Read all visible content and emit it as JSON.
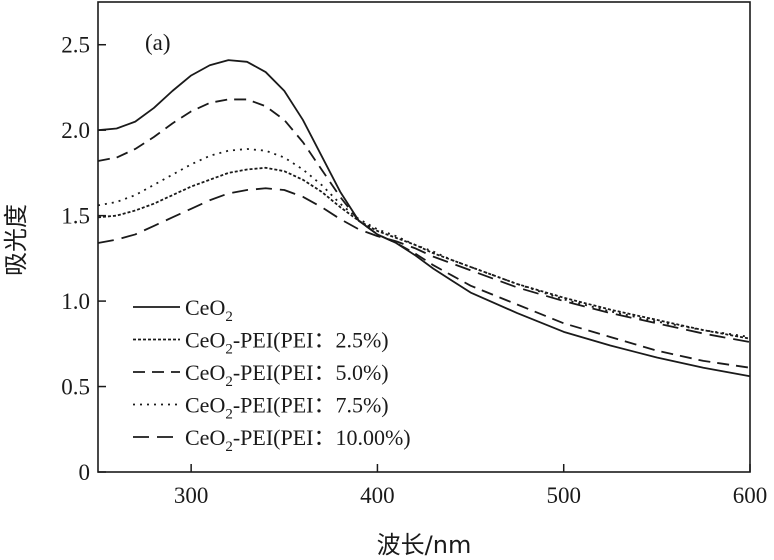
{
  "chart_data": {
    "type": "line",
    "panel_label": "(a)",
    "xlabel": "波长/nm",
    "ylabel": "吸光度",
    "xlim": [
      250,
      600
    ],
    "ylim": [
      0,
      2.75
    ],
    "x_ticks": [
      300,
      400,
      500,
      600
    ],
    "x_tick_labels": [
      "300",
      "400",
      "500",
      "600"
    ],
    "y_ticks": [
      0,
      0.5,
      1.0,
      1.5,
      2.0,
      2.5
    ],
    "y_tick_labels": [
      "0",
      "0.5",
      "1.0",
      "1.5",
      "2.0",
      "2.5"
    ],
    "grid": false,
    "legend_position": "bottom-left",
    "series": [
      {
        "name": "CeO2",
        "label_main": "CeO",
        "label_sub": "2",
        "label_rest": "",
        "dash": "solid",
        "x": [
          250,
          260,
          270,
          280,
          290,
          300,
          310,
          320,
          330,
          340,
          350,
          360,
          370,
          380,
          390,
          400,
          410,
          420,
          430,
          440,
          450,
          475,
          500,
          525,
          550,
          575,
          600
        ],
        "y": [
          2.0,
          2.01,
          2.05,
          2.13,
          2.23,
          2.32,
          2.38,
          2.41,
          2.4,
          2.34,
          2.23,
          2.06,
          1.85,
          1.64,
          1.47,
          1.39,
          1.34,
          1.27,
          1.19,
          1.12,
          1.05,
          0.93,
          0.82,
          0.74,
          0.67,
          0.61,
          0.56
        ]
      },
      {
        "name": "CeO2-PEI(PEI：2.5%)",
        "label_main": "CeO",
        "label_sub": "2",
        "label_rest": "-PEI(PEI：2.5%)",
        "dash": "dense-dot",
        "x": [
          250,
          260,
          270,
          280,
          290,
          300,
          310,
          320,
          330,
          340,
          350,
          360,
          370,
          380,
          390,
          400,
          410,
          420,
          430,
          440,
          450,
          475,
          500,
          525,
          550,
          575,
          600
        ],
        "y": [
          1.49,
          1.5,
          1.53,
          1.57,
          1.62,
          1.67,
          1.71,
          1.75,
          1.77,
          1.78,
          1.76,
          1.71,
          1.64,
          1.55,
          1.47,
          1.41,
          1.37,
          1.33,
          1.28,
          1.24,
          1.2,
          1.1,
          1.02,
          0.95,
          0.89,
          0.83,
          0.78
        ]
      },
      {
        "name": "CeO2-PEI(PEI：5.0%)",
        "label_main": "CeO",
        "label_sub": "2",
        "label_rest": "-PEI(PEI：5.0%)",
        "dash": "dash",
        "x": [
          250,
          260,
          270,
          280,
          290,
          300,
          310,
          320,
          330,
          340,
          350,
          360,
          370,
          380,
          390,
          400,
          410,
          420,
          430,
          440,
          450,
          475,
          500,
          525,
          550,
          575,
          600
        ],
        "y": [
          1.82,
          1.84,
          1.89,
          1.96,
          2.04,
          2.11,
          2.16,
          2.18,
          2.18,
          2.14,
          2.06,
          1.93,
          1.77,
          1.61,
          1.47,
          1.39,
          1.34,
          1.28,
          1.21,
          1.15,
          1.09,
          0.98,
          0.87,
          0.79,
          0.71,
          0.65,
          0.61
        ]
      },
      {
        "name": "CeO2-PEI(PEI：7.5%)",
        "label_main": "CeO",
        "label_sub": "2",
        "label_rest": "-PEI(PEI：7.5%)",
        "dash": "sparse-dot",
        "x": [
          250,
          260,
          270,
          280,
          290,
          300,
          310,
          320,
          330,
          340,
          350,
          360,
          370,
          380,
          390,
          400,
          410,
          420,
          430,
          440,
          450,
          475,
          500,
          525,
          550,
          575,
          600
        ],
        "y": [
          1.56,
          1.58,
          1.62,
          1.68,
          1.74,
          1.8,
          1.85,
          1.88,
          1.89,
          1.88,
          1.84,
          1.77,
          1.68,
          1.57,
          1.48,
          1.42,
          1.38,
          1.33,
          1.29,
          1.24,
          1.2,
          1.1,
          1.01,
          0.94,
          0.88,
          0.83,
          0.79
        ]
      },
      {
        "name": "CeO2-PEI(PEI：10.00%)",
        "label_main": "CeO",
        "label_sub": "2",
        "label_rest": "-PEI(PEI：10.00%)",
        "dash": "long-dash",
        "x": [
          250,
          260,
          270,
          280,
          290,
          300,
          310,
          320,
          330,
          340,
          350,
          360,
          370,
          380,
          390,
          400,
          410,
          420,
          430,
          440,
          450,
          475,
          500,
          525,
          550,
          575,
          600
        ],
        "y": [
          1.34,
          1.36,
          1.39,
          1.44,
          1.49,
          1.54,
          1.59,
          1.63,
          1.65,
          1.66,
          1.65,
          1.61,
          1.55,
          1.48,
          1.42,
          1.38,
          1.35,
          1.31,
          1.26,
          1.22,
          1.18,
          1.08,
          1.0,
          0.93,
          0.87,
          0.81,
          0.76
        ]
      }
    ]
  }
}
